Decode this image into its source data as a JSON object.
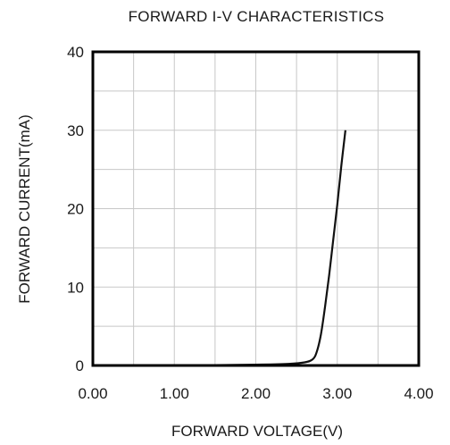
{
  "chart_data": {
    "type": "line",
    "title": "FORWARD I-V CHARACTERISTICS",
    "xlabel": "FORWARD VOLTAGE(V)",
    "ylabel": "FORWARD CURRENT(mA)",
    "xlim": [
      0,
      4
    ],
    "ylim": [
      0,
      40
    ],
    "x_ticks": [
      "0.00",
      "1.00",
      "2.00",
      "3.00",
      "4.00"
    ],
    "y_ticks": [
      "0",
      "10",
      "20",
      "30",
      "40"
    ],
    "grid": true,
    "series": [
      {
        "color": "#111111",
        "x": [
          0.0,
          1.0,
          2.0,
          2.4,
          2.6,
          2.7,
          2.75,
          2.8,
          2.85,
          2.9,
          2.95,
          3.0,
          3.05,
          3.1
        ],
        "y": [
          0.0,
          0.0,
          0.1,
          0.2,
          0.4,
          0.8,
          1.8,
          4.0,
          7.5,
          11.5,
          16.0,
          20.5,
          25.5,
          30.0
        ]
      }
    ]
  }
}
